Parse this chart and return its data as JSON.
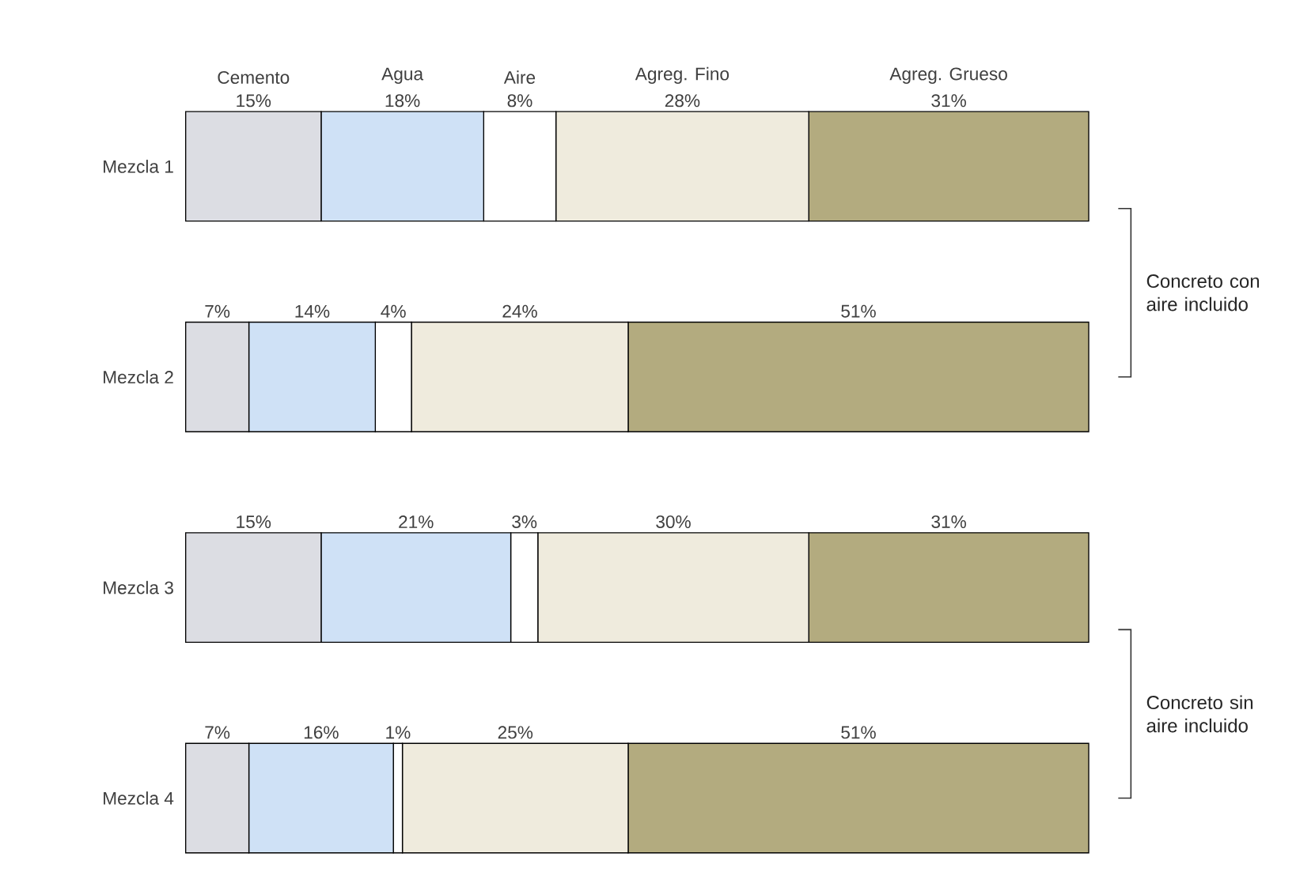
{
  "chart_data": {
    "type": "bar",
    "orientation": "horizontal",
    "stacked": true,
    "categories": [
      "Mezcla 1",
      "Mezcla 2",
      "Mezcla 3",
      "Mezcla 4"
    ],
    "series": [
      {
        "name": "Cemento",
        "color": "#dcdde3",
        "values": [
          15,
          7,
          15,
          7
        ],
        "value_labels": [
          "15%",
          "7%",
          "15%",
          "7%"
        ]
      },
      {
        "name": "Agua",
        "color": "#cfe1f6",
        "values": [
          18,
          14,
          21,
          16
        ],
        "value_labels": [
          "18%",
          "14%",
          "21%",
          "16%"
        ]
      },
      {
        "name": "Aire",
        "color": "#ffffff",
        "values": [
          8,
          4,
          3,
          1
        ],
        "value_labels": [
          "8%",
          "4%",
          "3%",
          "1%"
        ]
      },
      {
        "name": "Agreg. Fino",
        "color": "#efebdd",
        "values": [
          28,
          24,
          30,
          25
        ],
        "value_labels": [
          "28%",
          "24%",
          "30%",
          "25%"
        ]
      },
      {
        "name": "Agreg. Grueso",
        "color": "#b3ab7f",
        "values": [
          31,
          51,
          31,
          51
        ],
        "value_labels": [
          "31%",
          "51%",
          "31%",
          "51%"
        ]
      }
    ],
    "annotations": [
      "Concreto con aire incluido",
      "Concreto sin aire incluido"
    ]
  }
}
